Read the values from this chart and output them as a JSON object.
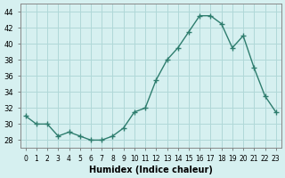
{
  "x": [
    0,
    1,
    2,
    3,
    4,
    5,
    6,
    7,
    8,
    9,
    10,
    11,
    12,
    13,
    14,
    15,
    16,
    17,
    18,
    19,
    20,
    21,
    22,
    23
  ],
  "y": [
    31,
    30,
    30,
    28.5,
    29,
    28.5,
    28,
    28,
    28.5,
    29.5,
    31.5,
    32,
    35.5,
    38,
    39.5,
    41.5,
    43.5,
    43.5,
    42.5,
    39.5,
    41,
    37,
    33.5,
    31.5
  ],
  "line_color": "#2e7d6e",
  "marker": "+",
  "marker_size": 4,
  "bg_color": "#d6f0f0",
  "grid_color": "#b0d8d8",
  "xlabel": "Humidex (Indice chaleur)",
  "ylabel": "",
  "title": "",
  "ylim": [
    27,
    45
  ],
  "xlim": [
    -0.5,
    23.5
  ],
  "yticks": [
    28,
    30,
    32,
    34,
    36,
    38,
    40,
    42,
    44
  ],
  "xtick_labels": [
    "0",
    "1",
    "2",
    "3",
    "4",
    "5",
    "6",
    "7",
    "8",
    "9",
    "10",
    "11",
    "12",
    "13",
    "14",
    "15",
    "16",
    "17",
    "18",
    "19",
    "20",
    "21",
    "22",
    "23"
  ]
}
